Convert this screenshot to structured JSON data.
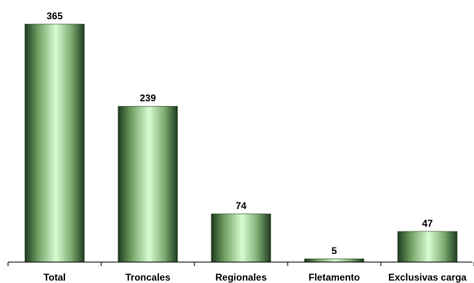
{
  "chart_data": {
    "type": "bar",
    "categories": [
      "Total",
      "Troncales",
      "Regionales",
      "Fletamento",
      "Exclusivas carga"
    ],
    "values": [
      365,
      239,
      74,
      5,
      47
    ],
    "title": "",
    "xlabel": "",
    "ylabel": "",
    "ylim": [
      0,
      380
    ],
    "grid": false,
    "legend": "none",
    "colors": {
      "bar_edge": "#2f4a2b",
      "bar_light": "#d9fcd3",
      "bar_mid": "#a9e09c",
      "bar_dark": "#1e3a1f"
    }
  }
}
